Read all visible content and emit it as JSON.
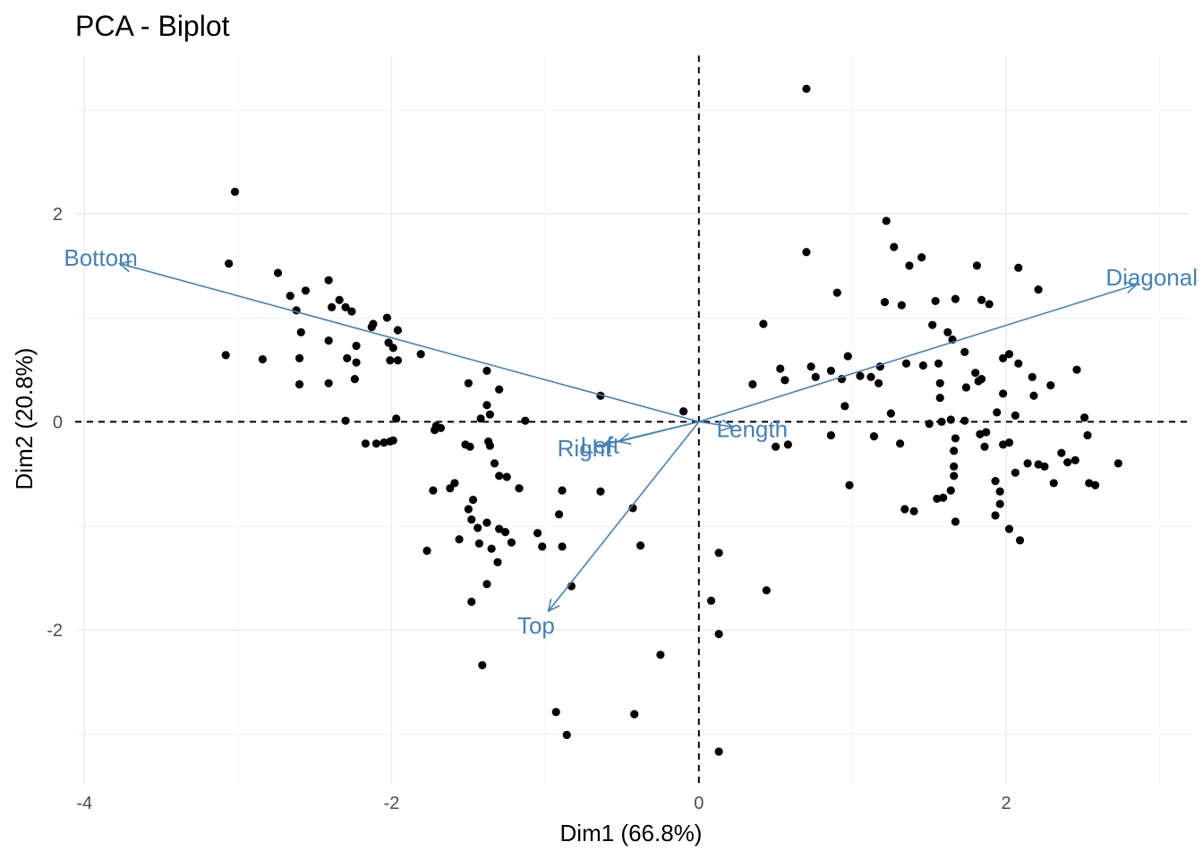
{
  "chart_data": {
    "type": "scatter",
    "title": "PCA - Biplot",
    "xlabel": "Dim1 (66.8%)",
    "ylabel": "Dim2 (20.8%)",
    "xlim": [
      -4.06,
      3.2
    ],
    "ylim": [
      -3.48,
      3.52
    ],
    "x_ticks": [
      -4,
      -2,
      0,
      2
    ],
    "y_ticks": [
      -2,
      0,
      2
    ],
    "x_tick_labels": [
      "-4",
      "-2",
      "0",
      "2"
    ],
    "y_tick_labels": [
      "-2",
      "0",
      "2"
    ],
    "grid": true,
    "reference_lines": {
      "x": 0,
      "y": 0,
      "style": "dashed"
    },
    "point_color": "#000000",
    "arrow_color": "#4682b4",
    "variables": [
      {
        "name": "Bottom",
        "x": -3.77,
        "y": 1.52
      },
      {
        "name": "Diagonal",
        "x": 2.85,
        "y": 1.32
      },
      {
        "name": "Length",
        "x": 0.22,
        "y": -0.05
      },
      {
        "name": "Right",
        "x": -0.62,
        "y": -0.22
      },
      {
        "name": "Left",
        "x": -0.52,
        "y": -0.19
      },
      {
        "name": "Top",
        "x": -0.98,
        "y": -1.82
      }
    ],
    "points": [
      [
        0.7,
        3.2
      ],
      [
        -3.02,
        2.21
      ],
      [
        1.22,
        1.93
      ],
      [
        -3.06,
        1.52
      ],
      [
        -2.74,
        1.43
      ],
      [
        0.7,
        1.63
      ],
      [
        1.27,
        1.68
      ],
      [
        1.45,
        1.58
      ],
      [
        1.81,
        1.5
      ],
      [
        -2.41,
        1.36
      ],
      [
        1.37,
        1.5
      ],
      [
        2.08,
        1.48
      ],
      [
        -2.56,
        1.26
      ],
      [
        -2.66,
        1.21
      ],
      [
        -2.34,
        1.17
      ],
      [
        -2.39,
        1.1
      ],
      [
        -2.3,
        1.1
      ],
      [
        -2.26,
        1.06
      ],
      [
        -2.62,
        1.07
      ],
      [
        0.9,
        1.24
      ],
      [
        1.21,
        1.15
      ],
      [
        1.32,
        1.12
      ],
      [
        1.54,
        1.16
      ],
      [
        1.67,
        1.18
      ],
      [
        1.84,
        1.17
      ],
      [
        1.89,
        1.13
      ],
      [
        2.21,
        1.27
      ],
      [
        -2.03,
        1.0
      ],
      [
        -2.12,
        0.94
      ],
      [
        -2.13,
        0.91
      ],
      [
        -1.96,
        0.88
      ],
      [
        -2.59,
        0.86
      ],
      [
        -2.41,
        0.78
      ],
      [
        -2.23,
        0.73
      ],
      [
        -2.02,
        0.76
      ],
      [
        -1.99,
        0.71
      ],
      [
        -2.01,
        0.59
      ],
      [
        -1.96,
        0.59
      ],
      [
        -2.23,
        0.57
      ],
      [
        -2.29,
        0.61
      ],
      [
        -1.81,
        0.65
      ],
      [
        -2.84,
        0.6
      ],
      [
        -3.08,
        0.64
      ],
      [
        -2.6,
        0.61
      ],
      [
        -2.6,
        0.36
      ],
      [
        -2.41,
        0.37
      ],
      [
        -2.24,
        0.41
      ],
      [
        -1.38,
        0.49
      ],
      [
        -1.5,
        0.37
      ],
      [
        -1.3,
        0.31
      ],
      [
        -0.64,
        0.25
      ],
      [
        -1.38,
        0.16
      ],
      [
        -1.36,
        0.07
      ],
      [
        -1.42,
        0.03
      ],
      [
        -1.13,
        0.01
      ],
      [
        -2.3,
        0.01
      ],
      [
        -1.97,
        0.03
      ],
      [
        0.42,
        0.94
      ],
      [
        0.56,
        0.4
      ],
      [
        0.53,
        0.51
      ],
      [
        0.35,
        0.36
      ],
      [
        0.73,
        0.53
      ],
      [
        0.76,
        0.43
      ],
      [
        0.86,
        0.49
      ],
      [
        0.97,
        0.63
      ],
      [
        1.05,
        0.44
      ],
      [
        1.12,
        0.43
      ],
      [
        1.18,
        0.53
      ],
      [
        1.35,
        0.56
      ],
      [
        1.52,
        0.93
      ],
      [
        1.62,
        0.86
      ],
      [
        1.65,
        0.79
      ],
      [
        1.73,
        0.67
      ],
      [
        1.8,
        0.47
      ],
      [
        1.82,
        0.39
      ],
      [
        1.84,
        0.41
      ],
      [
        1.56,
        0.56
      ],
      [
        1.46,
        0.54
      ],
      [
        1.57,
        0.37
      ],
      [
        1.74,
        0.33
      ],
      [
        1.98,
        0.61
      ],
      [
        2.02,
        0.65
      ],
      [
        2.08,
        0.56
      ],
      [
        2.17,
        0.43
      ],
      [
        2.29,
        0.35
      ],
      [
        2.46,
        0.5
      ],
      [
        0.93,
        0.41
      ],
      [
        0.95,
        0.15
      ],
      [
        1.17,
        0.37
      ],
      [
        1.57,
        0.23
      ],
      [
        1.98,
        0.27
      ],
      [
        2.18,
        0.25
      ],
      [
        -0.1,
        0.1
      ],
      [
        0.5,
        -0.24
      ],
      [
        0.58,
        -0.22
      ],
      [
        0.86,
        -0.13
      ],
      [
        1.14,
        -0.14
      ],
      [
        1.31,
        -0.21
      ],
      [
        1.25,
        0.08
      ],
      [
        1.5,
        -0.02
      ],
      [
        1.58,
        0.0
      ],
      [
        1.64,
        0.02
      ],
      [
        1.73,
        0.01
      ],
      [
        1.83,
        -0.12
      ],
      [
        1.94,
        0.09
      ],
      [
        2.06,
        0.06
      ],
      [
        1.59,
        -0.73
      ],
      [
        1.64,
        -0.66
      ],
      [
        1.66,
        -0.52
      ],
      [
        1.66,
        -0.43
      ],
      [
        1.66,
        -0.28
      ],
      [
        1.67,
        -0.16
      ],
      [
        1.86,
        -0.24
      ],
      [
        1.87,
        -0.1
      ],
      [
        1.93,
        -0.57
      ],
      [
        1.93,
        -0.9
      ],
      [
        1.96,
        -0.79
      ],
      [
        1.96,
        -0.67
      ],
      [
        1.98,
        -0.22
      ],
      [
        2.02,
        -0.2
      ],
      [
        2.06,
        -0.49
      ],
      [
        2.14,
        -0.4
      ],
      [
        2.21,
        -0.41
      ],
      [
        2.25,
        -0.43
      ],
      [
        2.31,
        -0.59
      ],
      [
        2.36,
        -0.3
      ],
      [
        2.4,
        -0.39
      ],
      [
        2.45,
        -0.37
      ],
      [
        2.51,
        0.04
      ],
      [
        2.53,
        -0.13
      ],
      [
        2.54,
        -0.59
      ],
      [
        2.58,
        -0.61
      ],
      [
        2.73,
        -0.4
      ],
      [
        1.55,
        -0.74
      ],
      [
        1.67,
        -0.96
      ],
      [
        1.34,
        -0.84
      ],
      [
        1.4,
        -0.86
      ],
      [
        2.02,
        -1.03
      ],
      [
        2.09,
        -1.14
      ],
      [
        0.98,
        -0.61
      ],
      [
        -1.71,
        -0.04
      ],
      [
        -1.72,
        -0.08
      ],
      [
        -1.68,
        -0.06
      ],
      [
        -1.52,
        -0.22
      ],
      [
        -1.49,
        -0.24
      ],
      [
        -1.36,
        -0.23
      ],
      [
        -1.37,
        -0.19
      ],
      [
        -1.33,
        -0.4
      ],
      [
        -1.3,
        -0.52
      ],
      [
        -1.25,
        -0.53
      ],
      [
        -1.17,
        -0.64
      ],
      [
        -1.59,
        -0.59
      ],
      [
        -1.62,
        -0.64
      ],
      [
        -1.73,
        -0.66
      ],
      [
        -1.47,
        -0.75
      ],
      [
        -1.5,
        -0.84
      ],
      [
        -1.48,
        -0.94
      ],
      [
        -1.44,
        -1.02
      ],
      [
        -1.38,
        -0.97
      ],
      [
        -1.3,
        -1.03
      ],
      [
        -1.26,
        -1.06
      ],
      [
        -1.22,
        -1.16
      ],
      [
        -1.56,
        -1.13
      ],
      [
        -1.43,
        -1.17
      ],
      [
        -1.35,
        -1.22
      ],
      [
        -1.77,
        -1.24
      ],
      [
        -1.31,
        -1.35
      ],
      [
        -1.38,
        -1.56
      ],
      [
        -1.48,
        -1.73
      ],
      [
        -1.41,
        -2.34
      ],
      [
        -1.05,
        -1.07
      ],
      [
        -1.02,
        -1.2
      ],
      [
        -0.89,
        -0.66
      ],
      [
        -0.91,
        -0.89
      ],
      [
        -0.89,
        -1.2
      ],
      [
        -0.64,
        -0.67
      ],
      [
        -0.83,
        -1.58
      ],
      [
        -0.43,
        -0.83
      ],
      [
        -0.38,
        -1.19
      ],
      [
        -0.42,
        -2.81
      ],
      [
        -0.93,
        -2.79
      ],
      [
        -0.86,
        -3.01
      ],
      [
        -0.25,
        -2.24
      ],
      [
        0.08,
        -1.72
      ],
      [
        0.13,
        -2.04
      ],
      [
        0.13,
        -3.17
      ],
      [
        0.13,
        -1.26
      ],
      [
        0.44,
        -1.62
      ],
      [
        -2.1,
        -0.21
      ],
      [
        -2.01,
        -0.19
      ],
      [
        -1.99,
        -0.18
      ],
      [
        -2.05,
        -0.2
      ],
      [
        -2.17,
        -0.21
      ]
    ]
  }
}
